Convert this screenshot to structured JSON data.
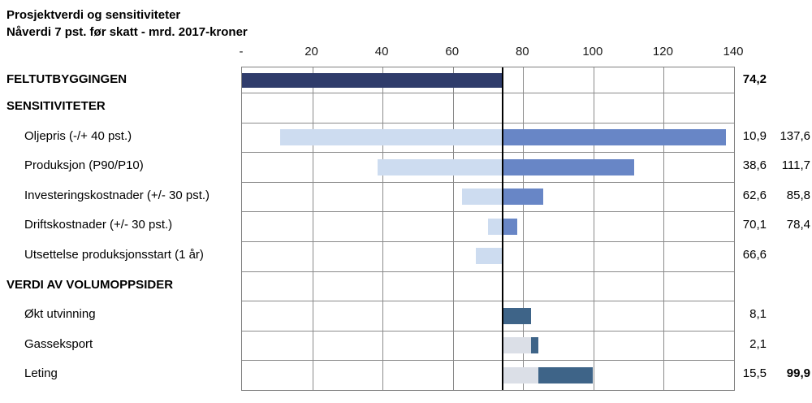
{
  "title": {
    "line1": "Prosjektverdi og sensitiviteter",
    "line2": "Nåverdi 7 pst. før skatt - mrd. 2017-kroner"
  },
  "colors": {
    "base_bar": "#2f3c6b",
    "downside_bar": "#cddcf0",
    "upside_bar": "#6886c6",
    "offset_bar": "#dbdfe7",
    "volume_bar": "#3e6488",
    "grid": "#8a8a8a",
    "reference_line": "#000000"
  },
  "chart_data": {
    "type": "bar",
    "orientation": "horizontal",
    "title": "Prosjektverdi og sensitiviteter",
    "subtitle": "Nåverdi 7 pst. før skatt - mrd. 2017-kroner",
    "unit": "mrd. 2017-kroner",
    "base_value": 74.2,
    "axis": {
      "min": 0,
      "max": 140,
      "tick_interval": 20,
      "ticks": [
        {
          "value": 0,
          "label": "-"
        },
        {
          "value": 20,
          "label": "20"
        },
        {
          "value": 40,
          "label": "40"
        },
        {
          "value": 60,
          "label": "60"
        },
        {
          "value": 80,
          "label": "80"
        },
        {
          "value": 100,
          "label": "100"
        },
        {
          "value": 120,
          "label": "120"
        },
        {
          "value": 140,
          "label": "140"
        }
      ],
      "grid": true
    },
    "rows": [
      {
        "label": "FELTUTBYGGINGEN",
        "header": true,
        "bars": [
          {
            "kind": "base",
            "from": 0,
            "to": 74.2
          }
        ],
        "value_low": "74,2",
        "value_low_bold": true
      },
      {
        "label": "SENSITIVITETER",
        "header": true,
        "bars": []
      },
      {
        "label": "Oljepris (-/+ 40 pst.)",
        "bars": [
          {
            "kind": "low",
            "from": 10.9,
            "to": 74.2
          },
          {
            "kind": "high",
            "from": 74.2,
            "to": 137.6
          }
        ],
        "value_low": "10,9",
        "value_high": "137,6"
      },
      {
        "label": "Produksjon (P90/P10)",
        "bars": [
          {
            "kind": "low",
            "from": 38.6,
            "to": 74.2
          },
          {
            "kind": "high",
            "from": 74.2,
            "to": 111.7
          }
        ],
        "value_low": "38,6",
        "value_high": "111,7"
      },
      {
        "label": "Investeringskostnader (+/- 30 pst.)",
        "bars": [
          {
            "kind": "low",
            "from": 62.6,
            "to": 74.2
          },
          {
            "kind": "high",
            "from": 74.2,
            "to": 85.8
          }
        ],
        "value_low": "62,6",
        "value_high": "85,8"
      },
      {
        "label": "Driftskostnader (+/- 30 pst.)",
        "bars": [
          {
            "kind": "low",
            "from": 70.1,
            "to": 74.2
          },
          {
            "kind": "high",
            "from": 74.2,
            "to": 78.4
          }
        ],
        "value_low": "70,1",
        "value_high": "78,4"
      },
      {
        "label": "Utsettelse produksjonsstart (1 år)",
        "bars": [
          {
            "kind": "low",
            "from": 66.6,
            "to": 74.2
          }
        ],
        "value_low": "66,6"
      },
      {
        "label": "VERDI AV VOLUMOPPSIDER",
        "header": true,
        "bars": []
      },
      {
        "label": "Økt utvinning",
        "bars": [
          {
            "kind": "volume",
            "from": 74.2,
            "to": 82.3
          }
        ],
        "value_low": "8,1"
      },
      {
        "label": "Gasseksport",
        "bars": [
          {
            "kind": "offset",
            "from": 74.2,
            "to": 82.3
          },
          {
            "kind": "volume",
            "from": 82.3,
            "to": 84.4
          }
        ],
        "value_low": "2,1"
      },
      {
        "label": "Leting",
        "bars": [
          {
            "kind": "offset",
            "from": 74.2,
            "to": 84.4
          },
          {
            "kind": "volume",
            "from": 84.4,
            "to": 99.9
          }
        ],
        "value_low": "15,5",
        "value_high": "99,9",
        "value_high_bold": true
      }
    ]
  }
}
